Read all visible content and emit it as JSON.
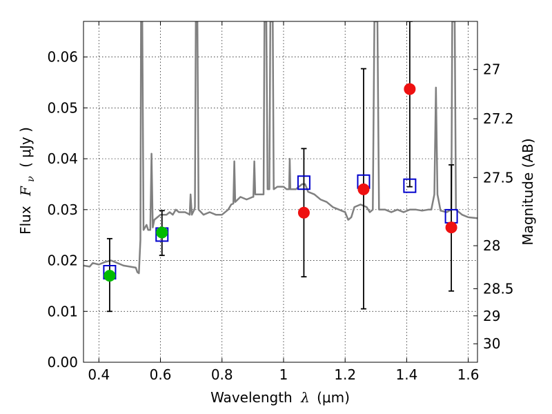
{
  "chart_data": {
    "type": "scatter",
    "xlabel": {
      "prefix": "Wavelength",
      "symbol": "λ",
      "unit": "(μm)"
    },
    "ylabel": {
      "prefix": "Flux",
      "symbol": "F",
      "subscript": "ν",
      "unit": "( μJy )"
    },
    "ylabel_right": "Magnitude (AB)",
    "xlim": [
      0.35,
      1.63
    ],
    "ylim": [
      0.0,
      0.067
    ],
    "grid": true,
    "x_ticks": [
      {
        "value": 0.4,
        "label": "0.4"
      },
      {
        "value": 0.6,
        "label": "0.6"
      },
      {
        "value": 0.8,
        "label": "0.8"
      },
      {
        "value": 1.0,
        "label": "1"
      },
      {
        "value": 1.2,
        "label": "1.2"
      },
      {
        "value": 1.4,
        "label": "1.4"
      },
      {
        "value": 1.6,
        "label": "1.6"
      }
    ],
    "y_ticks": [
      {
        "value": 0.0,
        "label": "0.00"
      },
      {
        "value": 0.01,
        "label": "0.01"
      },
      {
        "value": 0.02,
        "label": "0.02"
      },
      {
        "value": 0.03,
        "label": "0.03"
      },
      {
        "value": 0.04,
        "label": "0.04"
      },
      {
        "value": 0.05,
        "label": "0.05"
      },
      {
        "value": 0.06,
        "label": "0.06"
      }
    ],
    "right_ticks": [
      {
        "value": 27,
        "label": "27"
      },
      {
        "value": 27.2,
        "label": "27.2"
      },
      {
        "value": 27.5,
        "label": "27.5"
      },
      {
        "value": 28,
        "label": "28"
      },
      {
        "value": 28.5,
        "label": "28.5"
      },
      {
        "value": 29,
        "label": "29"
      },
      {
        "value": 30,
        "label": "30"
      }
    ],
    "series": [
      {
        "kind": "line",
        "color": "#808080",
        "points": [
          [
            0.35,
            0.019
          ],
          [
            0.37,
            0.0188
          ],
          [
            0.38,
            0.0195
          ],
          [
            0.4,
            0.0192
          ],
          [
            0.42,
            0.0197
          ],
          [
            0.44,
            0.02
          ],
          [
            0.46,
            0.0195
          ],
          [
            0.48,
            0.019
          ],
          [
            0.5,
            0.0188
          ],
          [
            0.52,
            0.0186
          ],
          [
            0.525,
            0.0177
          ],
          [
            0.53,
            0.0175
          ],
          [
            0.535,
            0.024
          ],
          [
            0.537,
            0.067
          ],
          [
            0.541,
            0.067
          ],
          [
            0.545,
            0.026
          ],
          [
            0.55,
            0.0265
          ],
          [
            0.555,
            0.027
          ],
          [
            0.56,
            0.026
          ],
          [
            0.567,
            0.026
          ],
          [
            0.571,
            0.041
          ],
          [
            0.575,
            0.0265
          ],
          [
            0.58,
            0.028
          ],
          [
            0.59,
            0.0285
          ],
          [
            0.6,
            0.029
          ],
          [
            0.61,
            0.029
          ],
          [
            0.62,
            0.029
          ],
          [
            0.63,
            0.0295
          ],
          [
            0.64,
            0.029
          ],
          [
            0.65,
            0.03
          ],
          [
            0.66,
            0.0295
          ],
          [
            0.68,
            0.0295
          ],
          [
            0.69,
            0.0292
          ],
          [
            0.695,
            0.029
          ],
          [
            0.698,
            0.033
          ],
          [
            0.702,
            0.029
          ],
          [
            0.71,
            0.03
          ],
          [
            0.712,
            0.0305
          ],
          [
            0.715,
            0.067
          ],
          [
            0.72,
            0.067
          ],
          [
            0.724,
            0.03
          ],
          [
            0.74,
            0.029
          ],
          [
            0.76,
            0.0295
          ],
          [
            0.78,
            0.029
          ],
          [
            0.8,
            0.029
          ],
          [
            0.82,
            0.03
          ],
          [
            0.83,
            0.031
          ],
          [
            0.837,
            0.0312
          ],
          [
            0.84,
            0.0395
          ],
          [
            0.843,
            0.0315
          ],
          [
            0.86,
            0.0325
          ],
          [
            0.88,
            0.032
          ],
          [
            0.9,
            0.0325
          ],
          [
            0.902,
            0.0325
          ],
          [
            0.905,
            0.0395
          ],
          [
            0.908,
            0.033
          ],
          [
            0.92,
            0.033
          ],
          [
            0.935,
            0.033
          ],
          [
            0.938,
            0.067
          ],
          [
            0.944,
            0.067
          ],
          [
            0.948,
            0.034
          ],
          [
            0.954,
            0.034
          ],
          [
            0.957,
            0.067
          ],
          [
            0.965,
            0.067
          ],
          [
            0.968,
            0.034
          ],
          [
            0.98,
            0.0345
          ],
          [
            1.0,
            0.0345
          ],
          [
            1.01,
            0.034
          ],
          [
            1.018,
            0.034
          ],
          [
            1.02,
            0.04
          ],
          [
            1.022,
            0.034
          ],
          [
            1.04,
            0.034
          ],
          [
            1.05,
            0.0345
          ],
          [
            1.06,
            0.035
          ],
          [
            1.07,
            0.035
          ],
          [
            1.08,
            0.0335
          ],
          [
            1.1,
            0.033
          ],
          [
            1.12,
            0.032
          ],
          [
            1.14,
            0.0315
          ],
          [
            1.16,
            0.0305
          ],
          [
            1.18,
            0.03
          ],
          [
            1.2,
            0.0295
          ],
          [
            1.21,
            0.028
          ],
          [
            1.22,
            0.0285
          ],
          [
            1.23,
            0.0305
          ],
          [
            1.25,
            0.031
          ],
          [
            1.27,
            0.0305
          ],
          [
            1.28,
            0.0295
          ],
          [
            1.29,
            0.03
          ],
          [
            1.295,
            0.067
          ],
          [
            1.305,
            0.067
          ],
          [
            1.31,
            0.03
          ],
          [
            1.33,
            0.03
          ],
          [
            1.35,
            0.0295
          ],
          [
            1.37,
            0.03
          ],
          [
            1.39,
            0.0295
          ],
          [
            1.41,
            0.03
          ],
          [
            1.43,
            0.03
          ],
          [
            1.45,
            0.0298
          ],
          [
            1.47,
            0.03
          ],
          [
            1.48,
            0.03
          ],
          [
            1.49,
            0.033
          ],
          [
            1.495,
            0.054
          ],
          [
            1.5,
            0.033
          ],
          [
            1.51,
            0.0298
          ],
          [
            1.53,
            0.0295
          ],
          [
            1.545,
            0.03
          ],
          [
            1.548,
            0.067
          ],
          [
            1.556,
            0.067
          ],
          [
            1.56,
            0.03
          ],
          [
            1.58,
            0.029
          ],
          [
            1.6,
            0.0285
          ],
          [
            1.63,
            0.0283
          ]
        ]
      },
      {
        "kind": "errorbar",
        "color": "#000000",
        "bars": [
          {
            "x": 0.435,
            "low": 0.01,
            "high": 0.0243
          },
          {
            "x": 0.605,
            "low": 0.021,
            "high": 0.0298
          },
          {
            "x": 1.066,
            "low": 0.0168,
            "high": 0.042
          },
          {
            "x": 1.26,
            "low": 0.0105,
            "high": 0.0577
          },
          {
            "x": 1.41,
            "low": 0.0345,
            "high": 0.067
          },
          {
            "x": 1.545,
            "low": 0.014,
            "high": 0.0388
          }
        ]
      },
      {
        "kind": "square-markers",
        "color": "#0000cc",
        "points": [
          [
            0.435,
            0.0177
          ],
          [
            0.605,
            0.0251
          ],
          [
            1.066,
            0.0353
          ],
          [
            1.26,
            0.0355
          ],
          [
            1.41,
            0.0347
          ],
          [
            1.545,
            0.0287
          ]
        ]
      },
      {
        "kind": "circle-markers",
        "color": "#00bb00",
        "points": [
          [
            0.435,
            0.017
          ],
          [
            0.605,
            0.0255
          ]
        ]
      },
      {
        "kind": "circle-markers",
        "color": "#ee1111",
        "points": [
          [
            1.066,
            0.0294
          ],
          [
            1.26,
            0.034
          ],
          [
            1.41,
            0.0537
          ],
          [
            1.545,
            0.0265
          ]
        ]
      }
    ]
  }
}
